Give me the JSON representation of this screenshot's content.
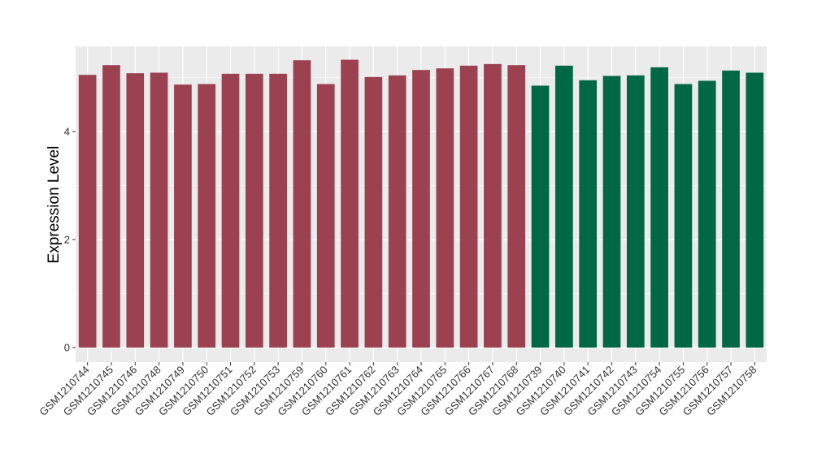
{
  "chart_data": {
    "type": "bar",
    "xlabel": "",
    "ylabel": "Expression Level",
    "ylim": [
      0,
      5.5
    ],
    "yticks": [
      0,
      2,
      4
    ],
    "grid": true,
    "legend": "none",
    "colors": {
      "group1": "#9B4150",
      "group2": "#006844",
      "panel": "#EBEBEB",
      "grid": "#FFFFFF"
    },
    "categories": [
      "GSM1210744",
      "GSM1210745",
      "GSM1210746",
      "GSM1210748",
      "GSM1210749",
      "GSM1210750",
      "GSM1210751",
      "GSM1210752",
      "GSM1210753",
      "GSM1210759",
      "GSM1210760",
      "GSM1210761",
      "GSM1210762",
      "GSM1210763",
      "GSM1210764",
      "GSM1210765",
      "GSM1210766",
      "GSM1210767",
      "GSM1210768",
      "GSM1210739",
      "GSM1210740",
      "GSM1210741",
      "GSM1210742",
      "GSM1210743",
      "GSM1210754",
      "GSM1210755",
      "GSM1210756",
      "GSM1210757",
      "GSM1210758"
    ],
    "values": [
      5.05,
      5.23,
      5.08,
      5.09,
      4.87,
      4.88,
      5.07,
      5.07,
      5.07,
      5.32,
      4.88,
      5.33,
      5.01,
      5.04,
      5.14,
      5.17,
      5.22,
      5.25,
      5.23,
      4.85,
      5.22,
      4.95,
      5.03,
      5.04,
      5.19,
      4.88,
      4.94,
      5.13,
      5.09
    ],
    "groups": [
      "group1",
      "group1",
      "group1",
      "group1",
      "group1",
      "group1",
      "group1",
      "group1",
      "group1",
      "group1",
      "group1",
      "group1",
      "group1",
      "group1",
      "group1",
      "group1",
      "group1",
      "group1",
      "group1",
      "group2",
      "group2",
      "group2",
      "group2",
      "group2",
      "group2",
      "group2",
      "group2",
      "group2",
      "group2"
    ]
  }
}
